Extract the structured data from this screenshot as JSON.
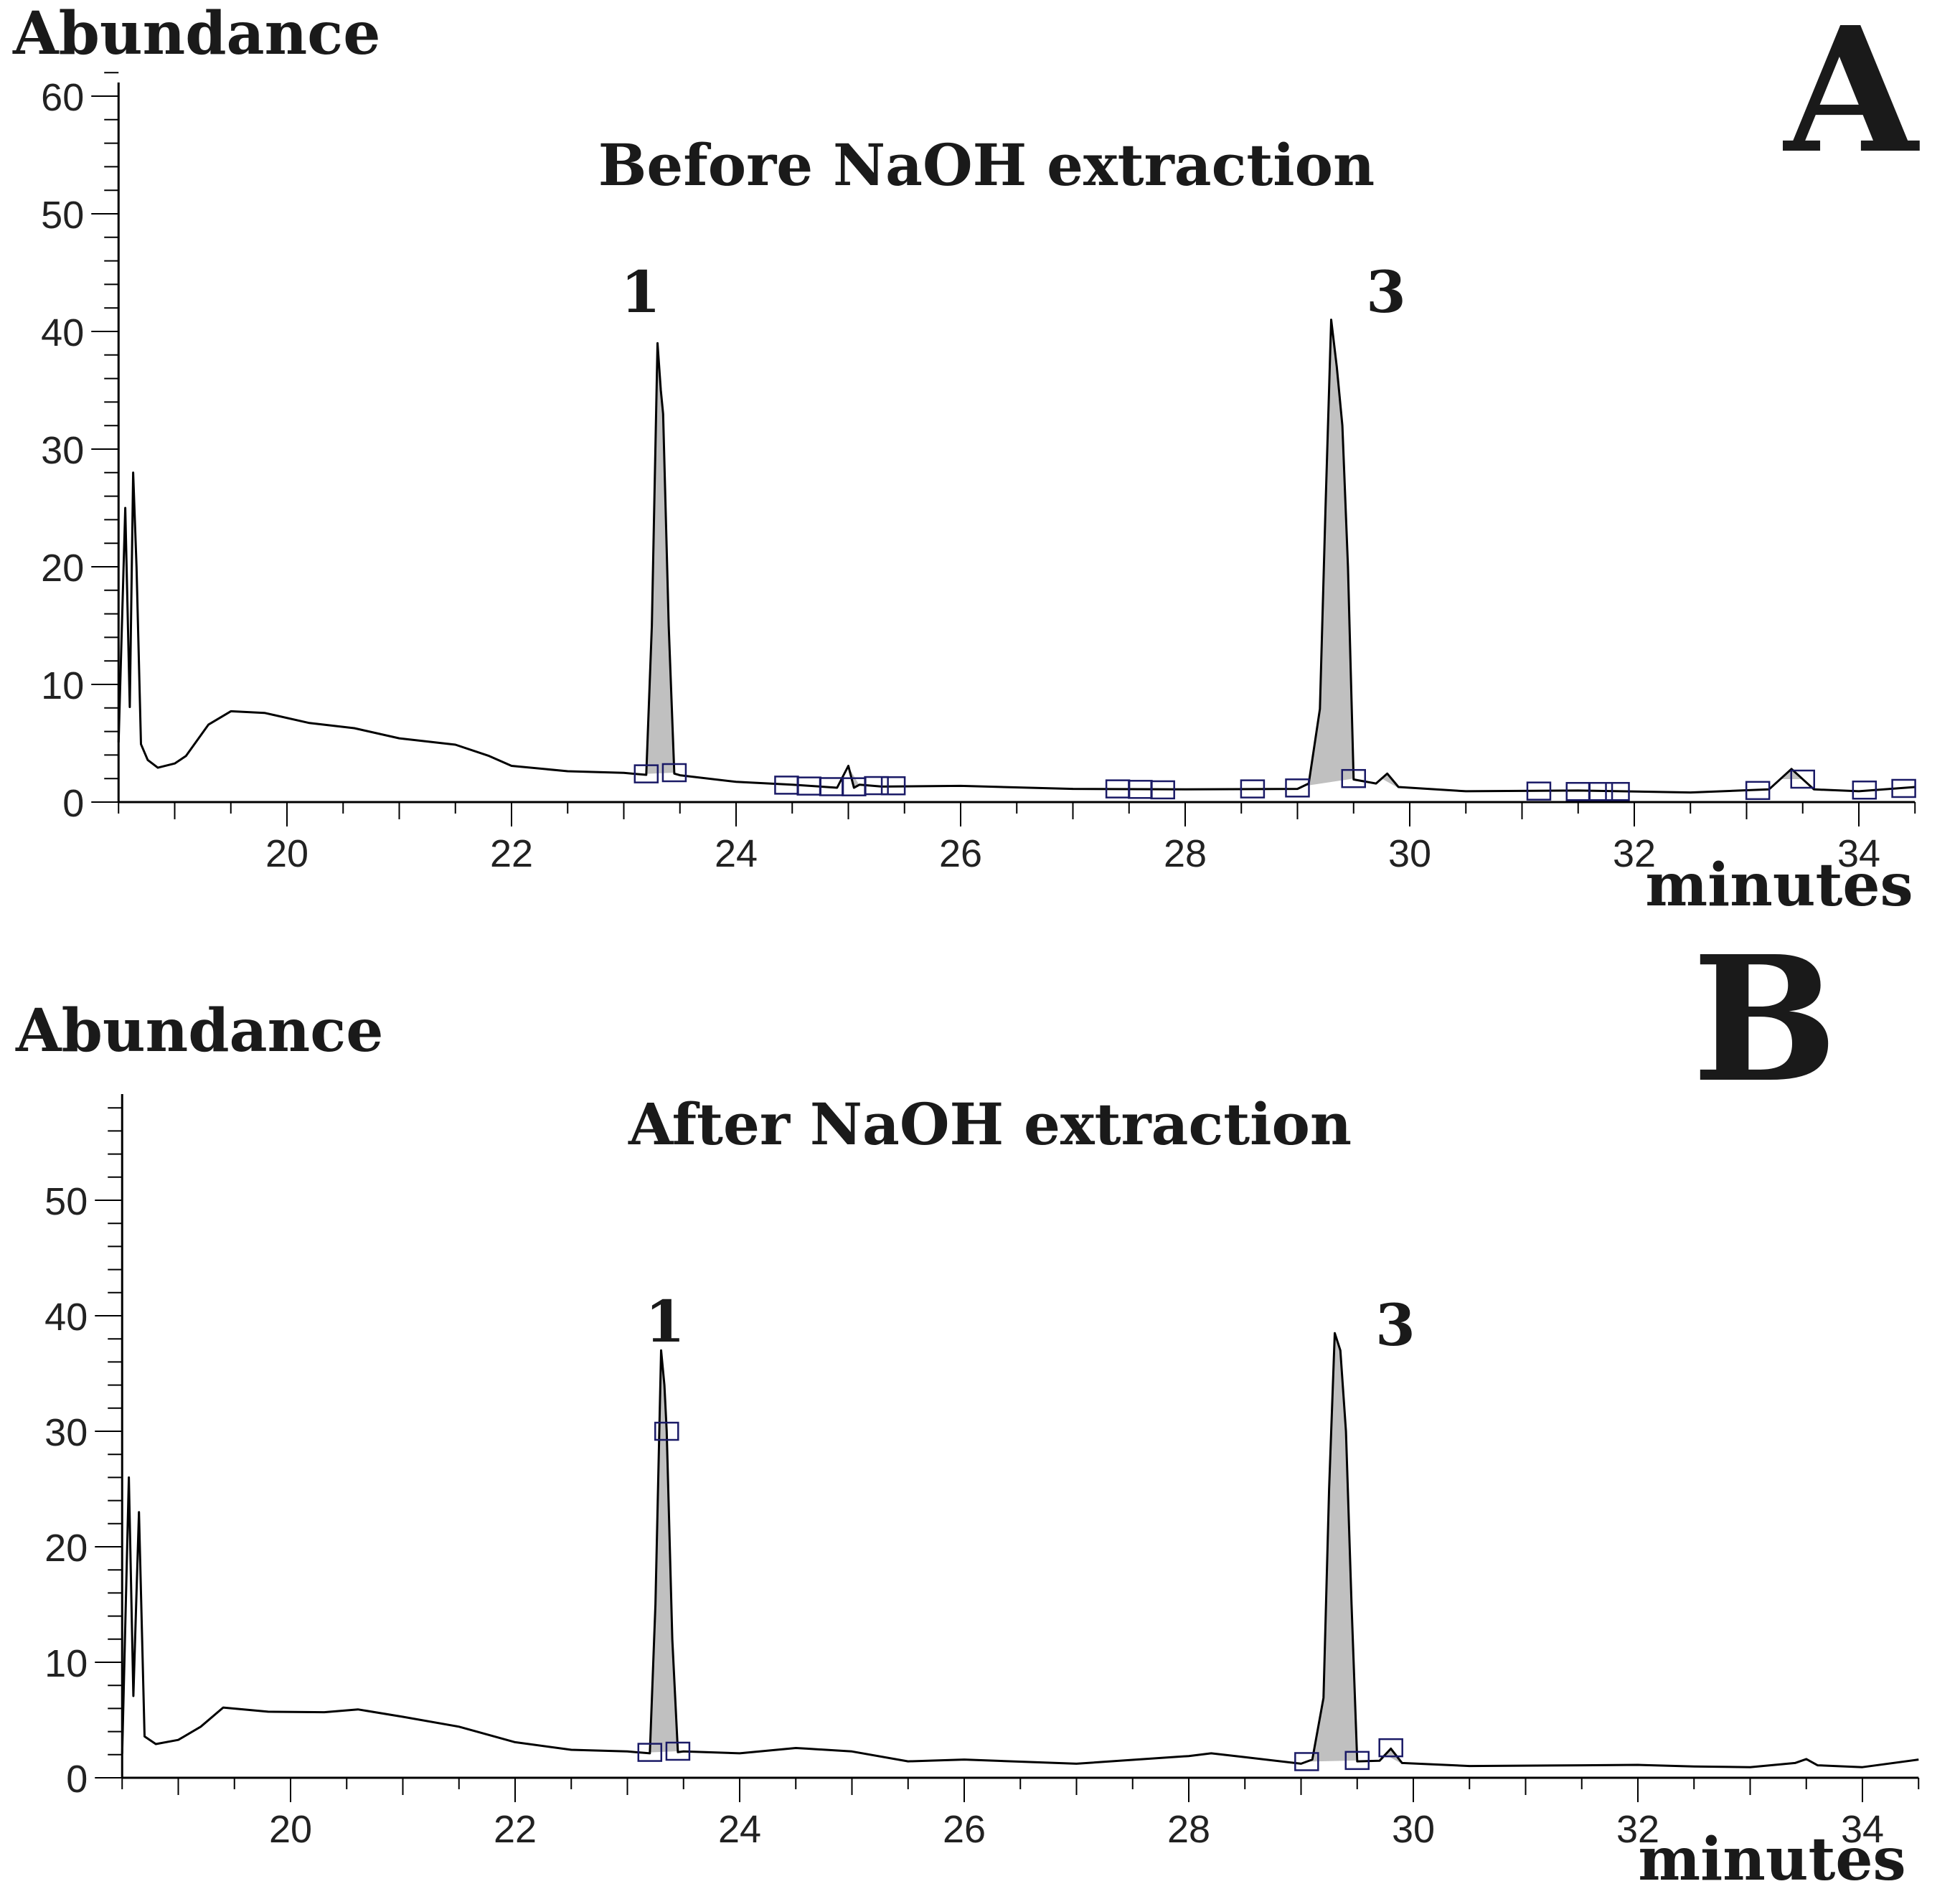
{
  "figure": {
    "colors": {
      "trace": "#000000",
      "peak_fill": "#c0c0c0",
      "marker": "#1a1a66",
      "background": "#ffffff"
    }
  },
  "chart_data": [
    {
      "type": "line",
      "panel_letter": "A",
      "title": "Before NaOH extraction",
      "ylabel": "Abundance",
      "xlabel": "minutes",
      "xlim": [
        18.5,
        34.5
      ],
      "ylim": [
        0,
        62
      ],
      "y_ticks": [
        0,
        10,
        20,
        30,
        40,
        50,
        60
      ],
      "y_tick_labels": [
        "0",
        "10",
        "20",
        "30",
        "40",
        "50",
        "60"
      ],
      "x_ticks": [
        20,
        22,
        24,
        26,
        28,
        30,
        32,
        34
      ],
      "x_tick_labels": [
        "20",
        "22",
        "24",
        "26",
        "28",
        "30",
        "32",
        "34"
      ],
      "grid": false,
      "series": [
        {
          "name": "chromatogram",
          "x": [
            18.5,
            18.56,
            18.6,
            18.63,
            18.66,
            18.7,
            18.76,
            18.85,
            19.0,
            19.1,
            19.3,
            19.5,
            19.8,
            20.2,
            20.6,
            21.0,
            21.5,
            21.8,
            22.0,
            22.5,
            23.0,
            23.2,
            23.25,
            23.3,
            23.33,
            23.35,
            23.4,
            23.45,
            23.5,
            24.0,
            24.5,
            24.9,
            25.0,
            25.05,
            25.1,
            25.3,
            26.0,
            27.0,
            28.0,
            29.0,
            29.1,
            29.2,
            29.25,
            29.3,
            29.35,
            29.4,
            29.45,
            29.5,
            29.7,
            29.8,
            29.9,
            30.5,
            31.5,
            32.5,
            33.2,
            33.4,
            33.6,
            34.0,
            34.5
          ],
          "y": [
            5,
            25,
            8,
            28,
            20,
            5,
            3.5,
            3,
            3.2,
            4,
            6.5,
            7.8,
            7.5,
            6.8,
            6.2,
            5.5,
            4.8,
            4,
            3,
            2.7,
            2.4,
            2.4,
            15,
            39,
            35,
            33,
            15,
            2.5,
            2.2,
            1.8,
            1.4,
            1.3,
            3,
            1.3,
            1.4,
            1.4,
            1.3,
            1.2,
            1.0,
            1.2,
            1.5,
            8,
            25,
            41,
            37,
            32,
            20,
            2,
            1.5,
            2.5,
            1.2,
            1.0,
            0.9,
            0.9,
            1.0,
            2.9,
            1.0,
            1.0,
            1.2
          ]
        }
      ],
      "filled_peaks": [
        {
          "label": "1",
          "x_start": 23.2,
          "x_end": 23.45,
          "apex_x": 23.3,
          "apex_y": 39
        },
        {
          "label": "3",
          "x_start": 29.05,
          "x_end": 29.5,
          "apex_x": 29.3,
          "apex_y": 41
        }
      ],
      "small_peaks": [
        {
          "x_start": 25.0,
          "x_end": 25.1,
          "apex_x": 25.05,
          "apex_y": 3.2
        },
        {
          "x_start": 29.75,
          "x_end": 29.9,
          "apex_x": 29.82,
          "apex_y": 2.7
        },
        {
          "x_start": 33.3,
          "x_end": 33.5,
          "apex_x": 33.4,
          "apex_y": 3.0
        }
      ],
      "baseline_markers": [
        23.2,
        23.45,
        24.45,
        24.65,
        24.85,
        25.05,
        25.25,
        25.4,
        27.4,
        27.6,
        27.8,
        28.6,
        29.0,
        29.5,
        31.15,
        31.5,
        31.7,
        31.85,
        33.1,
        33.5,
        34.05,
        34.4
      ]
    },
    {
      "type": "line",
      "panel_letter": "B",
      "title": "After NaOH extraction",
      "ylabel": "Abundance",
      "xlabel": "minutes",
      "xlim": [
        18.5,
        34.5
      ],
      "ylim": [
        0,
        58
      ],
      "y_ticks": [
        0,
        10,
        20,
        30,
        40,
        50
      ],
      "y_tick_labels": [
        "0",
        "10",
        "20",
        "30",
        "40",
        "50"
      ],
      "x_ticks": [
        20,
        22,
        24,
        26,
        28,
        30,
        32,
        34
      ],
      "x_tick_labels": [
        "20",
        "22",
        "24",
        "26",
        "28",
        "30",
        "32",
        "34"
      ],
      "grid": false,
      "series": [
        {
          "name": "chromatogram",
          "x": [
            18.5,
            18.56,
            18.6,
            18.65,
            18.7,
            18.8,
            19.0,
            19.2,
            19.4,
            19.8,
            20.3,
            20.6,
            21.0,
            21.5,
            22.0,
            22.5,
            23.0,
            23.2,
            23.25,
            23.3,
            23.33,
            23.35,
            23.4,
            23.45,
            23.5,
            24.0,
            24.5,
            24.6,
            25.0,
            25.5,
            26.0,
            27.0,
            28.0,
            28.2,
            28.5,
            29.0,
            29.1,
            29.2,
            29.25,
            29.3,
            29.35,
            29.4,
            29.45,
            29.5,
            29.7,
            29.8,
            29.9,
            30.5,
            31.5,
            32.0,
            32.5,
            33.0,
            33.4,
            33.5,
            33.6,
            34.0,
            34.5
          ],
          "y": [
            2,
            26,
            7,
            23,
            3.5,
            3,
            3.2,
            4.5,
            6,
            5.8,
            5.6,
            6,
            5.2,
            4.5,
            3,
            2.5,
            2.2,
            2.2,
            15,
            37,
            34,
            30,
            12,
            2.3,
            2.2,
            2.2,
            2.5,
            2.6,
            2.2,
            1.5,
            1.5,
            1.3,
            1.8,
            2.2,
            1.7,
            1.3,
            1.5,
            7,
            25,
            38.5,
            37,
            30,
            15,
            1.5,
            1.4,
            2.6,
            1.2,
            1.1,
            1.0,
            1.2,
            0.9,
            1.0,
            1.2,
            1.7,
            1.0,
            1.0,
            1.5
          ]
        }
      ],
      "filled_peaks": [
        {
          "label": "1",
          "x_start": 23.2,
          "x_end": 23.45,
          "apex_x": 23.3,
          "apex_y": 37
        },
        {
          "label": "3",
          "x_start": 29.05,
          "x_end": 29.5,
          "apex_x": 29.3,
          "apex_y": 38.5
        }
      ],
      "small_peaks": [
        {
          "x_start": 29.75,
          "x_end": 29.9,
          "apex_x": 29.82,
          "apex_y": 2.7
        }
      ],
      "baseline_markers": [
        23.2,
        23.35,
        23.45,
        29.05,
        29.5,
        29.8
      ]
    }
  ]
}
